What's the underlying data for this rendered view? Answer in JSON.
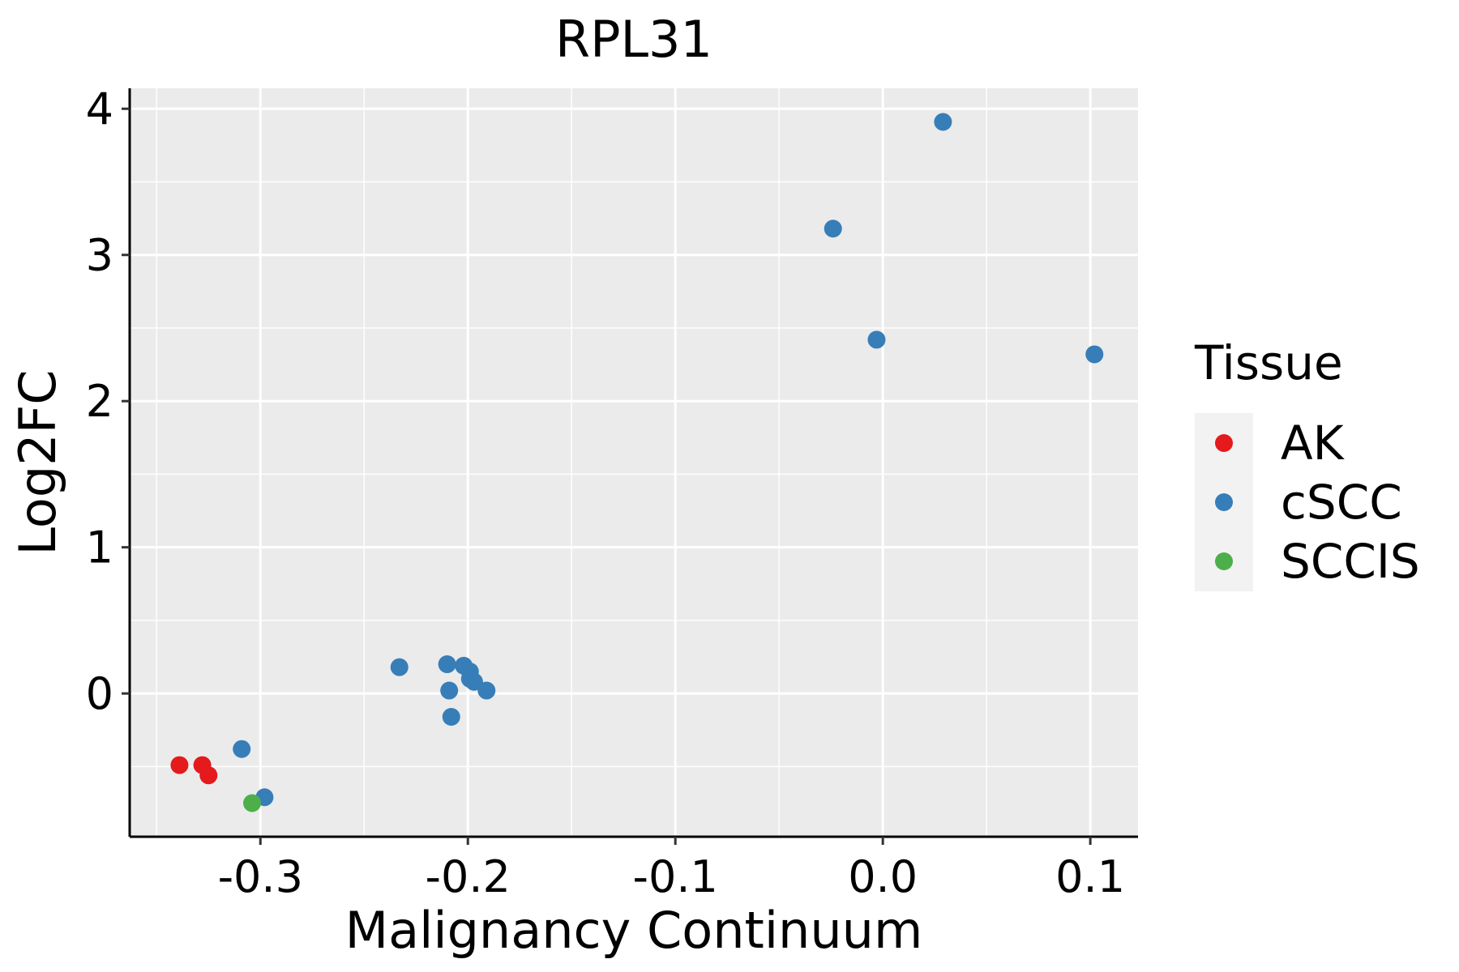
{
  "chart_data": {
    "type": "scatter",
    "title": "RPL31",
    "xlabel": "Malignancy Continuum",
    "ylabel": "Log2FC",
    "xlim": [
      -0.363,
      0.123
    ],
    "ylim": [
      -0.98,
      4.14
    ],
    "xticks": [
      -0.3,
      -0.2,
      -0.1,
      0.0,
      0.1
    ],
    "xtick_labels": [
      "-0.3",
      "-0.2",
      "-0.1",
      "0.0",
      "0.1"
    ],
    "yticks": [
      0,
      1,
      2,
      3,
      4
    ],
    "ytick_labels": [
      "0",
      "1",
      "2",
      "3",
      "4"
    ],
    "grid": true,
    "background": "#EBEBEB",
    "legend": {
      "title": "Tissue",
      "position": "right"
    },
    "series": [
      {
        "name": "AK",
        "color": "#E41A1C",
        "points": [
          [
            -0.339,
            -0.49
          ],
          [
            -0.328,
            -0.49
          ],
          [
            -0.325,
            -0.56
          ]
        ]
      },
      {
        "name": "cSCC",
        "color": "#377EB8",
        "points": [
          [
            -0.309,
            -0.38
          ],
          [
            -0.298,
            -0.71
          ],
          [
            -0.233,
            0.18
          ],
          [
            -0.21,
            0.2
          ],
          [
            -0.209,
            0.02
          ],
          [
            -0.208,
            -0.16
          ],
          [
            -0.202,
            0.19
          ],
          [
            -0.199,
            0.15
          ],
          [
            -0.199,
            0.1
          ],
          [
            -0.197,
            0.08
          ],
          [
            -0.191,
            0.02
          ],
          [
            -0.024,
            3.18
          ],
          [
            -0.003,
            2.42
          ],
          [
            0.029,
            3.91
          ],
          [
            0.102,
            2.32
          ]
        ]
      },
      {
        "name": "SCCIS",
        "color": "#4DAF4A",
        "points": [
          [
            -0.304,
            -0.75
          ]
        ]
      }
    ]
  }
}
